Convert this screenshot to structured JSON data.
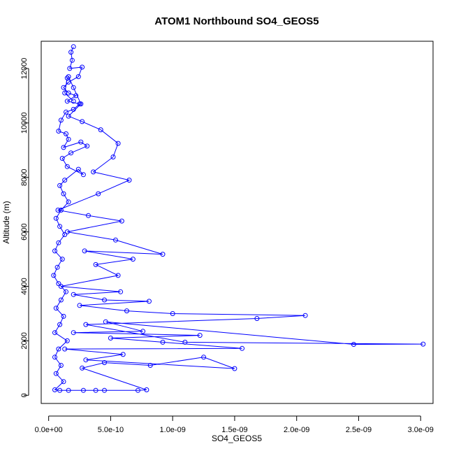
{
  "chart_data": {
    "type": "scatter",
    "title": "ATOM1 Northbound SO4_GEOS5",
    "xlabel": "SO4_GEOS5",
    "ylabel": "Altitude (m)",
    "xlim": [
      -6e-11,
      3.1e-09
    ],
    "ylim": [
      -300,
      13000
    ],
    "x_ticks": [
      0,
      5e-10,
      1e-09,
      1.5e-09,
      2e-09,
      2.5e-09,
      3e-09
    ],
    "x_tick_labels": [
      "0.0e+00",
      "5.0e-10",
      "1.0e-09",
      "1.5e-09",
      "2.0e-09",
      "2.5e-09",
      "3.0e-09"
    ],
    "y_ticks": [
      0,
      2000,
      4000,
      6000,
      8000,
      10000,
      12000
    ],
    "y_tick_labels": [
      "0",
      "2000",
      "4000",
      "6000",
      "8000",
      "10000",
      "12000"
    ],
    "connected": true,
    "marker": "open-circle",
    "color": "#0000ff",
    "grid": false,
    "series": [
      {
        "points": [
          [
            2e-10,
            12800
          ],
          [
            1.8e-10,
            12600
          ],
          [
            1.9e-10,
            12300
          ],
          [
            1.7e-10,
            12000
          ],
          [
            2.7e-10,
            12050
          ],
          [
            2.4e-10,
            11700
          ],
          [
            1.6e-10,
            11500
          ],
          [
            1.2e-10,
            11300
          ],
          [
            1.6e-10,
            11100
          ],
          [
            2.2e-10,
            11000
          ],
          [
            1.5e-10,
            10800
          ],
          [
            2.5e-10,
            10700
          ],
          [
            2e-10,
            10500
          ],
          [
            1.4e-10,
            10400
          ],
          [
            1e-10,
            10100
          ],
          [
            8e-11,
            9700
          ],
          [
            1.4e-10,
            9600
          ],
          [
            1.6e-10,
            9400
          ],
          [
            1.2e-10,
            9100
          ],
          [
            2.6e-10,
            9300
          ],
          [
            3.1e-10,
            9150
          ],
          [
            1.8e-10,
            8900
          ],
          [
            1.1e-10,
            8700
          ],
          [
            1.5e-10,
            8400
          ],
          [
            2.8e-10,
            8100
          ],
          [
            2.4e-10,
            8300
          ],
          [
            1.3e-10,
            7900
          ],
          [
            9e-11,
            7700
          ],
          [
            1.2e-10,
            7400
          ],
          [
            1.6e-10,
            7100
          ],
          [
            1e-10,
            6800
          ],
          [
            6e-11,
            6500
          ],
          [
            9e-11,
            6200
          ],
          [
            1.3e-10,
            5900
          ],
          [
            8e-11,
            5600
          ],
          [
            5e-11,
            5300
          ],
          [
            1.1e-10,
            5000
          ],
          [
            7e-11,
            4700
          ],
          [
            4e-11,
            4400
          ],
          [
            8e-11,
            4100
          ],
          [
            1.4e-10,
            3800
          ],
          [
            1e-10,
            3500
          ],
          [
            6e-11,
            3200
          ],
          [
            1.2e-10,
            2900
          ],
          [
            9e-11,
            2600
          ],
          [
            5e-11,
            2300
          ],
          [
            1.5e-10,
            2000
          ],
          [
            8e-11,
            1700
          ],
          [
            5e-11,
            1400
          ],
          [
            1e-10,
            1100
          ],
          [
            6e-11,
            800
          ],
          [
            1.2e-10,
            500
          ],
          [
            5e-11,
            200
          ],
          [
            9e-11,
            180
          ],
          [
            1.6e-10,
            180
          ],
          [
            2.8e-10,
            180
          ],
          [
            3.8e-10,
            180
          ],
          [
            4.5e-10,
            180
          ],
          [
            7.2e-10,
            180
          ],
          [
            7.9e-10,
            200
          ],
          [
            2.7e-10,
            1000
          ],
          [
            4.5e-10,
            1200
          ],
          [
            8.2e-10,
            1100
          ],
          [
            1.25e-09,
            1400
          ],
          [
            1.5e-09,
            980
          ],
          [
            3e-10,
            1300
          ],
          [
            6e-10,
            1500
          ],
          [
            1.3e-10,
            1700
          ],
          [
            1.56e-09,
            1720
          ],
          [
            9.2e-10,
            1950
          ],
          [
            5e-10,
            2100
          ],
          [
            1.22e-09,
            2200
          ],
          [
            2e-10,
            2300
          ],
          [
            7.6e-10,
            2350
          ],
          [
            4.6e-10,
            2700
          ],
          [
            2.46e-09,
            1870
          ],
          [
            3.02e-09,
            1880
          ],
          [
            1.1e-09,
            1950
          ],
          [
            3e-10,
            2600
          ],
          [
            1.68e-09,
            2820
          ],
          [
            2.07e-09,
            2930
          ],
          [
            1e-09,
            3000
          ],
          [
            6.3e-10,
            3100
          ],
          [
            2.5e-10,
            3300
          ],
          [
            8.1e-10,
            3450
          ],
          [
            4.5e-10,
            3500
          ],
          [
            2e-10,
            3700
          ],
          [
            5.8e-10,
            3800
          ],
          [
            1e-10,
            4000
          ],
          [
            5.6e-10,
            4400
          ],
          [
            3.8e-10,
            4800
          ],
          [
            6.8e-10,
            5000
          ],
          [
            2.9e-10,
            5300
          ],
          [
            9.2e-10,
            5180
          ],
          [
            5.4e-10,
            5700
          ],
          [
            1.5e-10,
            6000
          ],
          [
            5.9e-10,
            6400
          ],
          [
            3.2e-10,
            6600
          ],
          [
            7.5e-11,
            6800
          ],
          [
            4e-10,
            7400
          ],
          [
            6.5e-10,
            7900
          ],
          [
            3.6e-10,
            8200
          ],
          [
            5.2e-10,
            8750
          ],
          [
            5.6e-10,
            9250
          ],
          [
            4.2e-10,
            9750
          ],
          [
            2.7e-10,
            10050
          ],
          [
            1.6e-10,
            10250
          ],
          [
            2.6e-10,
            10700
          ],
          [
            2e-10,
            11300
          ],
          [
            1.6e-10,
            11700
          ],
          [
            1.5e-10,
            11650
          ],
          [
            1.3e-10,
            11100
          ],
          [
            2e-10,
            10800
          ]
        ]
      }
    ]
  }
}
